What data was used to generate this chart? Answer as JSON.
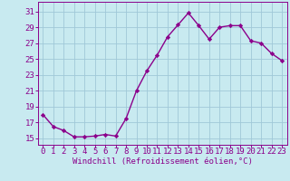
{
  "x": [
    0,
    1,
    2,
    3,
    4,
    5,
    6,
    7,
    8,
    9,
    10,
    11,
    12,
    13,
    14,
    15,
    16,
    17,
    18,
    19,
    20,
    21,
    22,
    23
  ],
  "y": [
    18.0,
    16.5,
    16.0,
    15.2,
    15.2,
    15.3,
    15.5,
    15.3,
    17.5,
    21.0,
    23.5,
    25.5,
    27.8,
    29.3,
    30.8,
    29.2,
    27.5,
    29.0,
    29.2,
    29.2,
    27.3,
    27.0,
    25.7,
    24.8
  ],
  "line_color": "#8B008B",
  "marker": "D",
  "marker_size": 2.2,
  "bg_color": "#c8eaf0",
  "grid_color": "#a0c8d8",
  "xlabel": "Windchill (Refroidissement éolien,°C)",
  "ylabel_ticks": [
    15,
    17,
    19,
    21,
    23,
    25,
    27,
    29,
    31
  ],
  "xlim": [
    -0.5,
    23.5
  ],
  "ylim": [
    14.2,
    32.2
  ],
  "xticks": [
    0,
    1,
    2,
    3,
    4,
    5,
    6,
    7,
    8,
    9,
    10,
    11,
    12,
    13,
    14,
    15,
    16,
    17,
    18,
    19,
    20,
    21,
    22,
    23
  ],
  "axes_color": "#8B008B",
  "tick_label_color": "#8B008B",
  "xlabel_color": "#8B008B",
  "xlabel_fontsize": 6.5,
  "tick_fontsize": 6.5,
  "line_width": 1.0
}
